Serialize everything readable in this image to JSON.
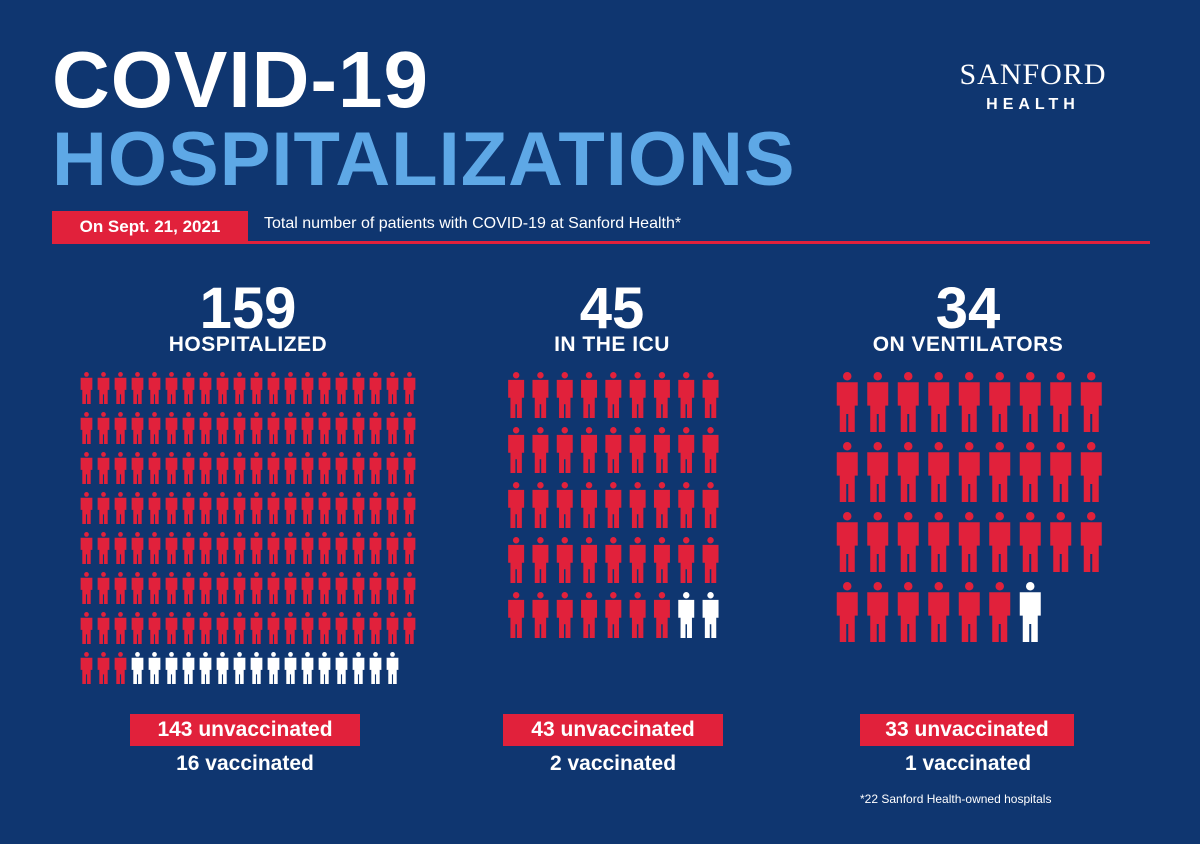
{
  "title_line1": "COVID-19",
  "title_line2": "HOSPITALIZATIONS",
  "logo": {
    "main": "SANFORD",
    "sub": "HEALTH"
  },
  "date_label": "On Sept. 21, 2021",
  "subtitle": "Total number of patients with COVID-19 at Sanford Health*",
  "colors": {
    "background": "#0f3670",
    "accent": "#e1213b",
    "light_blue": "#5ea8e6",
    "vaccinated": "#ffffff"
  },
  "stats": [
    {
      "total": "159",
      "label": "HOSPITALIZED",
      "unvaccinated_text": "143 unvaccinated",
      "vaccinated_text": "16 vaccinated",
      "unvaccinated": 143,
      "vaccinated": 16
    },
    {
      "total": "45",
      "label": "IN THE ICU",
      "unvaccinated_text": "43 unvaccinated",
      "vaccinated_text": "2 vaccinated",
      "unvaccinated": 43,
      "vaccinated": 2
    },
    {
      "total": "34",
      "label": "ON VENTILATORS",
      "unvaccinated_text": "33 unvaccinated",
      "vaccinated_text": "1 vaccinated",
      "unvaccinated": 33,
      "vaccinated": 1
    }
  ],
  "icon": "person-icon",
  "footnote": "*22 Sanford Health-owned hospitals"
}
